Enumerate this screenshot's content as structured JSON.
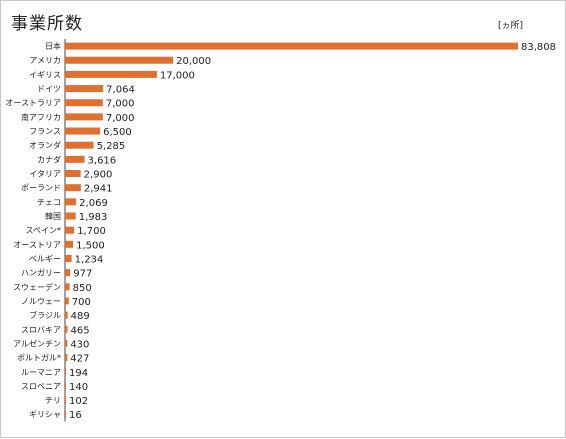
{
  "chart_data": {
    "type": "bar",
    "orientation": "horizontal",
    "title": "事業所数",
    "unit": "[ヵ所]",
    "bar_color": "#e07030",
    "categories": [
      "日本",
      "アメリカ",
      "イギリス",
      "ドイツ",
      "オーストラリア",
      "南アフリカ",
      "フランス",
      "オランダ",
      "カナダ",
      "イタリア",
      "ポーランド",
      "チェコ",
      "韓国",
      "スペイン*",
      "オーストリア",
      "ベルギー",
      "ハンガリー",
      "スウェーデン",
      "ノルウェー",
      "ブラジル",
      "スロバキア",
      "アルゼンチン",
      "ポルトガル*",
      "ルーマニア",
      "スロベニア",
      "チリ",
      "ギリシャ"
    ],
    "values": [
      83808,
      20000,
      17000,
      7064,
      7000,
      7000,
      6500,
      5285,
      3616,
      2900,
      2941,
      2069,
      1983,
      1700,
      1500,
      1234,
      977,
      850,
      700,
      489,
      465,
      430,
      427,
      194,
      140,
      102,
      16
    ],
    "value_labels": [
      "83,808",
      "20,000",
      "17,000",
      "7,064",
      "7,000",
      "7,000",
      "6,500",
      "5,285",
      "3,616",
      "2,900",
      "2,941",
      "2,069",
      "1,983",
      "1,700",
      "1,500",
      "1,234",
      "977",
      "850",
      "700",
      "489",
      "465",
      "430",
      "427",
      "194",
      "140",
      "102",
      "16"
    ],
    "xlim": [
      0,
      83808
    ],
    "grid": false,
    "legend": "none"
  }
}
